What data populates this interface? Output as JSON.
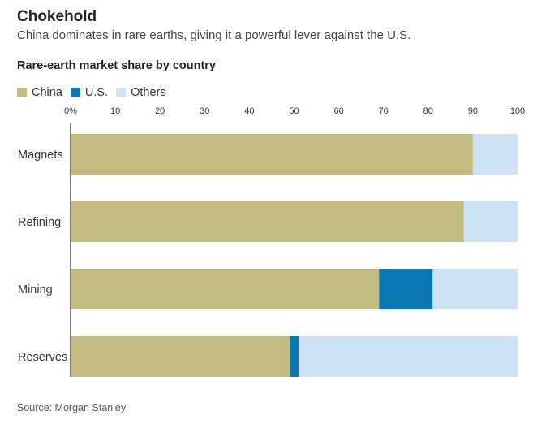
{
  "header": {
    "title": "Chokehold",
    "subtitle": "China dominates in rare earths, giving it a powerful lever against the U.S."
  },
  "source": "Source: Morgan Stanley",
  "colors": {
    "China": "#c2bb82",
    "U.S.": "#0a78b3",
    "Others": "#cde2f5"
  },
  "chart_data": {
    "type": "bar",
    "orientation": "horizontal",
    "stacked": true,
    "title": "Rare-earth market share by country",
    "xlabel": "",
    "ylabel": "",
    "xlim": [
      0,
      100
    ],
    "ticks": [
      "0%",
      "10",
      "20",
      "30",
      "40",
      "50",
      "60",
      "70",
      "80",
      "90",
      "100"
    ],
    "tick_values": [
      0,
      10,
      20,
      30,
      40,
      50,
      60,
      70,
      80,
      90,
      100
    ],
    "categories": [
      "Magnets",
      "Refining",
      "Mining",
      "Reserves"
    ],
    "legend_position": "top-left",
    "grid": false,
    "series": [
      {
        "name": "China",
        "values": [
          90,
          88,
          69,
          49
        ]
      },
      {
        "name": "U.S.",
        "values": [
          0,
          0,
          12,
          2
        ]
      },
      {
        "name": "Others",
        "values": [
          10,
          12,
          19,
          49
        ]
      }
    ]
  }
}
